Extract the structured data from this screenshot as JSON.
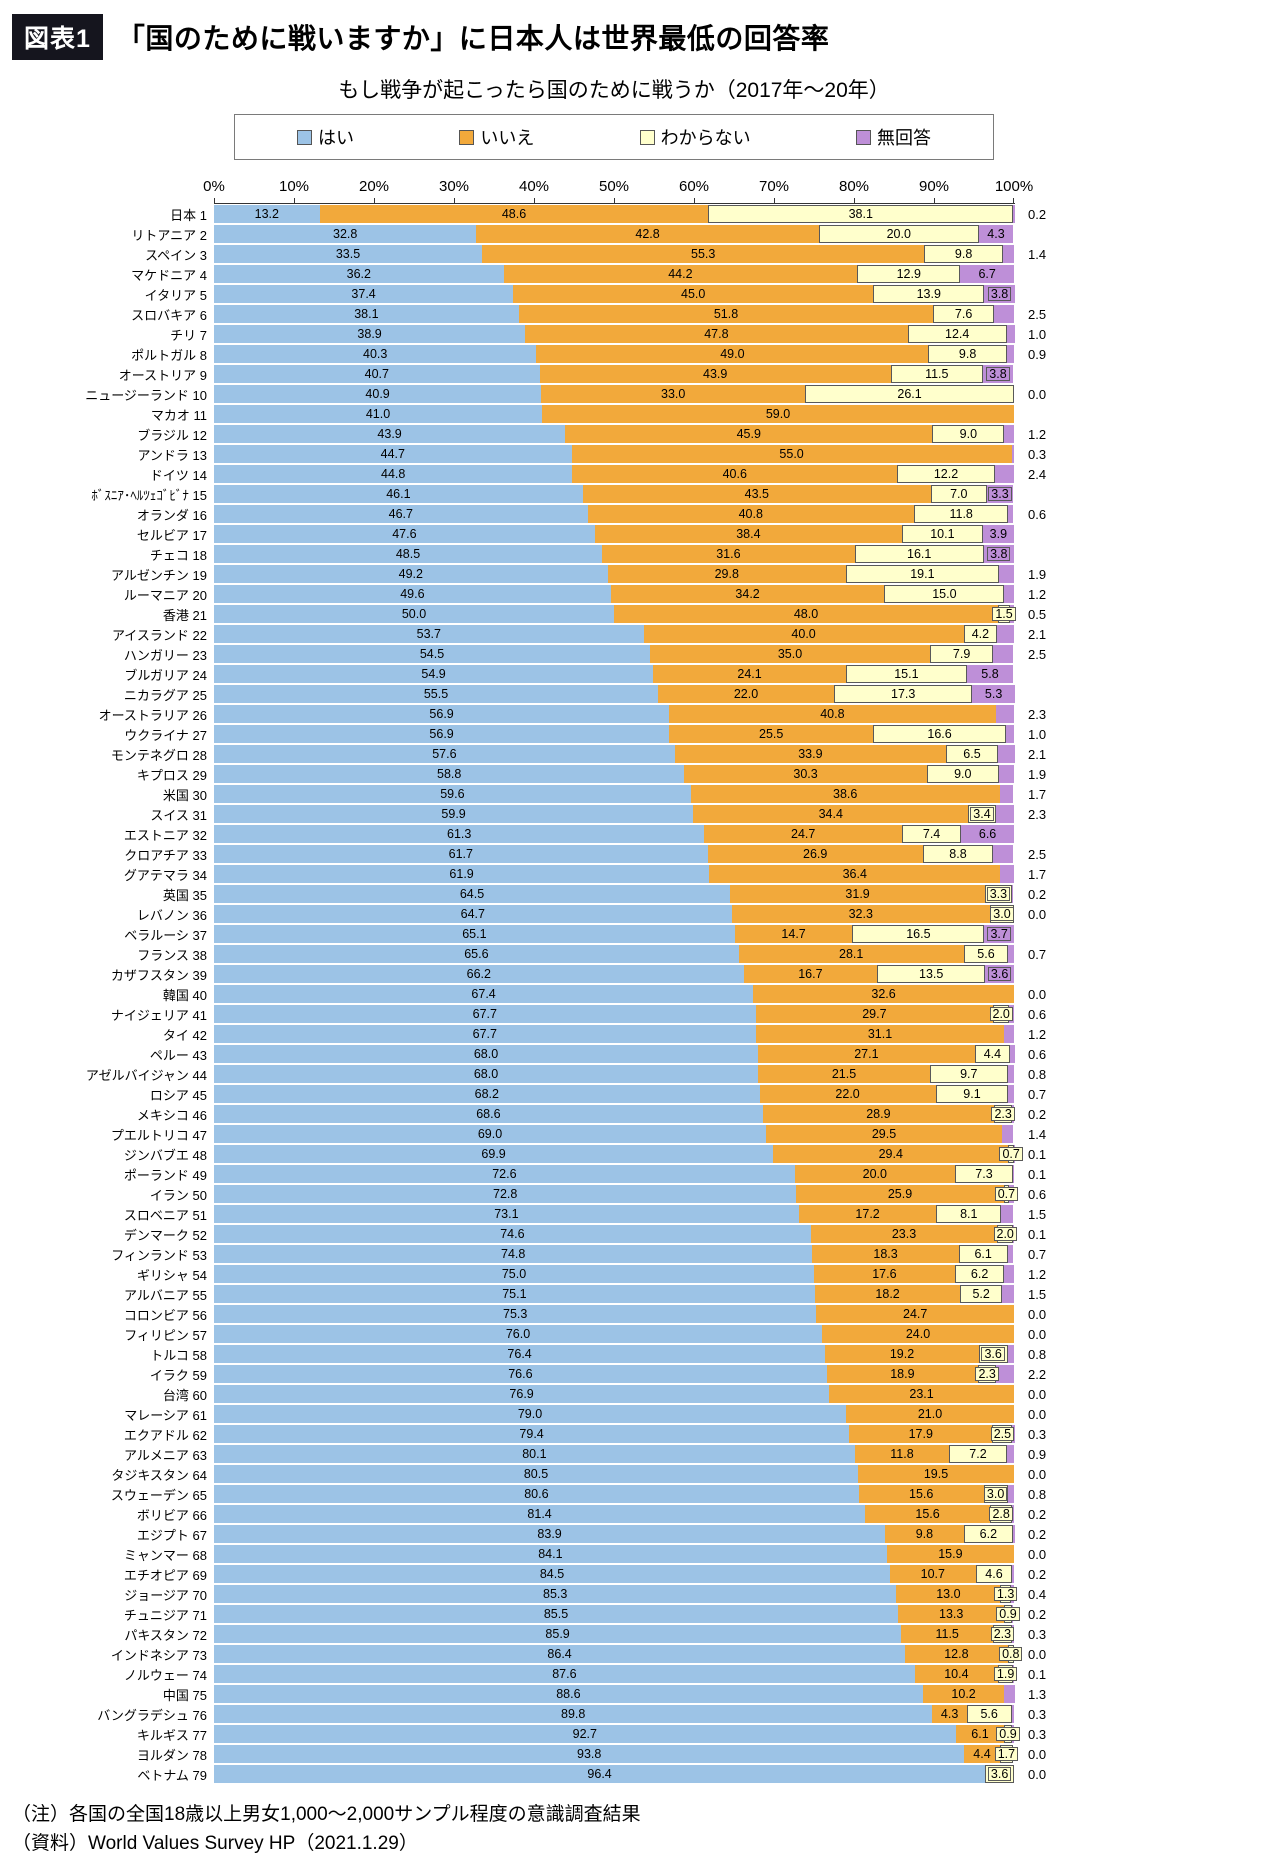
{
  "page": {
    "tag": "図表1",
    "title": "「国のために戦いますか」に日本人は世界最低の回答率",
    "subtitle": "もし戦争が起こったら国のために戦うか（2017年～20年）",
    "note": "（注）各国の全国18歳以上男女1,000～2,000サンプル程度の意識調査結果",
    "source": "（資料）World Values Survey HP（2021.1.29）"
  },
  "legend": [
    {
      "key": "yes",
      "label": "はい",
      "color": "#9CC3E6"
    },
    {
      "key": "no",
      "label": "いいえ",
      "color": "#F2A93B"
    },
    {
      "key": "dk",
      "label": "わからない",
      "color": "#FFFFCC"
    },
    {
      "key": "na",
      "label": "無回答",
      "color": "#BE8FD8"
    }
  ],
  "axis": {
    "ticks": [
      "0%",
      "10%",
      "20%",
      "30%",
      "40%",
      "50%",
      "60%",
      "70%",
      "80%",
      "90%",
      "100%"
    ],
    "tick_step": 10
  },
  "chart_data": {
    "type": "bar",
    "stacked": true,
    "orientation": "horizontal",
    "unit": "%",
    "x_range": [
      0,
      100
    ],
    "title": "もし戦争が起こったら国のために戦うか（2017年～20年）",
    "legend_position": "top",
    "series_names": [
      "はい",
      "いいえ",
      "わからない",
      "無回答"
    ],
    "rows": [
      {
        "rank": 1,
        "name": "日本",
        "yes": 13.2,
        "no": 48.6,
        "dk": 38.1,
        "na": 0.2,
        "right": "0.2",
        "na_inline": false
      },
      {
        "rank": 2,
        "name": "リトアニア",
        "yes": 32.8,
        "no": 42.8,
        "dk": 20.0,
        "na": 4.3,
        "right": "",
        "na_inline": true
      },
      {
        "rank": 3,
        "name": "スペイン",
        "yes": 33.5,
        "no": 55.3,
        "dk": 9.8,
        "na": 1.4,
        "right": "1.4",
        "na_inline": false
      },
      {
        "rank": 4,
        "name": "マケドニア",
        "yes": 36.2,
        "no": 44.2,
        "dk": 12.9,
        "na": 6.7,
        "right": "",
        "na_inline": true
      },
      {
        "rank": 5,
        "name": "イタリア",
        "yes": 37.4,
        "no": 45.0,
        "dk": 13.9,
        "na": 3.8,
        "right": "",
        "na_inline": true
      },
      {
        "rank": 6,
        "name": "スロバキア",
        "yes": 38.1,
        "no": 51.8,
        "dk": 7.6,
        "na": 2.5,
        "right": "2.5",
        "na_inline": false
      },
      {
        "rank": 7,
        "name": "チリ",
        "yes": 38.9,
        "no": 47.8,
        "dk": 12.4,
        "na": 1.0,
        "right": "1.0",
        "na_inline": false
      },
      {
        "rank": 8,
        "name": "ポルトガル",
        "yes": 40.3,
        "no": 49.0,
        "dk": 9.8,
        "na": 0.9,
        "right": "0.9",
        "na_inline": false
      },
      {
        "rank": 9,
        "name": "オーストリア",
        "yes": 40.7,
        "no": 43.9,
        "dk": 11.5,
        "na": 3.8,
        "right": "",
        "na_inline": true
      },
      {
        "rank": 10,
        "name": "ニュージーランド",
        "yes": 40.9,
        "no": 33.0,
        "dk": 26.1,
        "na": 0.0,
        "right": "0.0",
        "na_inline": false
      },
      {
        "rank": 11,
        "name": "マカオ",
        "yes": 41.0,
        "no": 59.0,
        "dk": 0,
        "na": 0,
        "right": "",
        "na_inline": false
      },
      {
        "rank": 12,
        "name": "ブラジル",
        "yes": 43.9,
        "no": 45.9,
        "dk": 9.0,
        "na": 1.2,
        "right": "1.2",
        "na_inline": false
      },
      {
        "rank": 13,
        "name": "アンドラ",
        "yes": 44.7,
        "no": 55.0,
        "dk": 0,
        "na": 0.3,
        "right": "0.3",
        "na_inline": false
      },
      {
        "rank": 14,
        "name": "ドイツ",
        "yes": 44.8,
        "no": 40.6,
        "dk": 12.2,
        "na": 2.4,
        "right": "2.4",
        "na_inline": false
      },
      {
        "rank": 15,
        "name": "ﾎﾞｽﾆｱ･ﾍﾙﾂｪｺﾞﾋﾞﾅ",
        "yes": 46.1,
        "no": 43.5,
        "dk": 7.0,
        "na": 3.3,
        "right": "",
        "na_inline": true
      },
      {
        "rank": 16,
        "name": "オランダ",
        "yes": 46.7,
        "no": 40.8,
        "dk": 11.8,
        "na": 0.6,
        "right": "0.6",
        "na_inline": false
      },
      {
        "rank": 17,
        "name": "セルビア",
        "yes": 47.6,
        "no": 38.4,
        "dk": 10.1,
        "na": 3.9,
        "right": "",
        "na_inline": true
      },
      {
        "rank": 18,
        "name": "チェコ",
        "yes": 48.5,
        "no": 31.6,
        "dk": 16.1,
        "na": 3.8,
        "right": "",
        "na_inline": true
      },
      {
        "rank": 19,
        "name": "アルゼンチン",
        "yes": 49.2,
        "no": 29.8,
        "dk": 19.1,
        "na": 1.9,
        "right": "1.9",
        "na_inline": false
      },
      {
        "rank": 20,
        "name": "ルーマニア",
        "yes": 49.6,
        "no": 34.2,
        "dk": 15.0,
        "na": 1.2,
        "right": "1.2",
        "na_inline": false
      },
      {
        "rank": 21,
        "name": "香港",
        "yes": 50.0,
        "no": 48.0,
        "dk": 1.5,
        "na": 0.5,
        "right": "0.5",
        "na_inline": false
      },
      {
        "rank": 22,
        "name": "アイスランド",
        "yes": 53.7,
        "no": 40.0,
        "dk": 4.2,
        "na": 2.1,
        "right": "2.1",
        "na_inline": false
      },
      {
        "rank": 23,
        "name": "ハンガリー",
        "yes": 54.5,
        "no": 35.0,
        "dk": 7.9,
        "na": 2.5,
        "right": "2.5",
        "na_inline": false
      },
      {
        "rank": 24,
        "name": "ブルガリア",
        "yes": 54.9,
        "no": 24.1,
        "dk": 15.1,
        "na": 5.8,
        "right": "",
        "na_inline": true
      },
      {
        "rank": 25,
        "name": "ニカラグア",
        "yes": 55.5,
        "no": 22.0,
        "dk": 17.3,
        "na": 5.3,
        "right": "",
        "na_inline": true
      },
      {
        "rank": 26,
        "name": "オーストラリア",
        "yes": 56.9,
        "no": 40.8,
        "dk": 0,
        "na": 2.3,
        "right": "2.3",
        "na_inline": false
      },
      {
        "rank": 27,
        "name": "ウクライナ",
        "yes": 56.9,
        "no": 25.5,
        "dk": 16.6,
        "na": 1.0,
        "right": "1.0",
        "na_inline": false
      },
      {
        "rank": 28,
        "name": "モンテネグロ",
        "yes": 57.6,
        "no": 33.9,
        "dk": 6.5,
        "na": 2.1,
        "right": "2.1",
        "na_inline": false
      },
      {
        "rank": 29,
        "name": "キプロス",
        "yes": 58.8,
        "no": 30.3,
        "dk": 9.0,
        "na": 1.9,
        "right": "1.9",
        "na_inline": false
      },
      {
        "rank": 30,
        "name": "米国",
        "yes": 59.6,
        "no": 38.6,
        "dk": 0,
        "na": 1.7,
        "right": "1.7",
        "na_inline": false
      },
      {
        "rank": 31,
        "name": "スイス",
        "yes": 59.9,
        "no": 34.4,
        "dk": 3.4,
        "na": 2.3,
        "right": "2.3",
        "na_inline": false
      },
      {
        "rank": 32,
        "name": "エストニア",
        "yes": 61.3,
        "no": 24.7,
        "dk": 7.4,
        "na": 6.6,
        "right": "",
        "na_inline": true
      },
      {
        "rank": 33,
        "name": "クロアチア",
        "yes": 61.7,
        "no": 26.9,
        "dk": 8.8,
        "na": 2.5,
        "right": "2.5",
        "na_inline": false
      },
      {
        "rank": 34,
        "name": "グアテマラ",
        "yes": 61.9,
        "no": 36.4,
        "dk": 0,
        "na": 1.7,
        "right": "1.7",
        "na_inline": false
      },
      {
        "rank": 35,
        "name": "英国",
        "yes": 64.5,
        "no": 31.9,
        "dk": 3.3,
        "na": 0.2,
        "right": "0.2",
        "na_inline": false
      },
      {
        "rank": 36,
        "name": "レバノン",
        "yes": 64.7,
        "no": 32.3,
        "dk": 3.0,
        "na": 0.0,
        "right": "0.0",
        "na_inline": false
      },
      {
        "rank": 37,
        "name": "ベラルーシ",
        "yes": 65.1,
        "no": 14.7,
        "dk": 16.5,
        "na": 3.7,
        "right": "",
        "na_inline": true
      },
      {
        "rank": 38,
        "name": "フランス",
        "yes": 65.6,
        "no": 28.1,
        "dk": 5.6,
        "na": 0.7,
        "right": "0.7",
        "na_inline": false
      },
      {
        "rank": 39,
        "name": "カザフスタン",
        "yes": 66.2,
        "no": 16.7,
        "dk": 13.5,
        "na": 3.6,
        "right": "",
        "na_inline": true
      },
      {
        "rank": 40,
        "name": "韓国",
        "yes": 67.4,
        "no": 32.6,
        "dk": 0,
        "na": 0.0,
        "right": "0.0",
        "na_inline": false
      },
      {
        "rank": 41,
        "name": "ナイジェリア",
        "yes": 67.7,
        "no": 29.7,
        "dk": 2.0,
        "na": 0.6,
        "right": "0.6",
        "na_inline": false
      },
      {
        "rank": 42,
        "name": "タイ",
        "yes": 67.7,
        "no": 31.1,
        "dk": 0,
        "na": 1.2,
        "right": "1.2",
        "na_inline": false
      },
      {
        "rank": 43,
        "name": "ペルー",
        "yes": 68.0,
        "no": 27.1,
        "dk": 4.4,
        "na": 0.6,
        "right": "0.6",
        "na_inline": false
      },
      {
        "rank": 44,
        "name": "アゼルバイジャン",
        "yes": 68.0,
        "no": 21.5,
        "dk": 9.7,
        "na": 0.8,
        "right": "0.8",
        "na_inline": false
      },
      {
        "rank": 45,
        "name": "ロシア",
        "yes": 68.2,
        "no": 22.0,
        "dk": 9.1,
        "na": 0.7,
        "right": "0.7",
        "na_inline": false
      },
      {
        "rank": 46,
        "name": "メキシコ",
        "yes": 68.6,
        "no": 28.9,
        "dk": 2.3,
        "na": 0.2,
        "right": "0.2",
        "na_inline": false
      },
      {
        "rank": 47,
        "name": "プエルトリコ",
        "yes": 69.0,
        "no": 29.5,
        "dk": 0,
        "na": 1.4,
        "right": "1.4",
        "na_inline": false
      },
      {
        "rank": 48,
        "name": "ジンバブエ",
        "yes": 69.9,
        "no": 29.4,
        "dk": 0.7,
        "na": 0.1,
        "right": "0.1",
        "na_inline": false
      },
      {
        "rank": 49,
        "name": "ポーランド",
        "yes": 72.6,
        "no": 20.0,
        "dk": 7.3,
        "na": 0.1,
        "right": "0.1",
        "na_inline": false
      },
      {
        "rank": 50,
        "name": "イラン",
        "yes": 72.8,
        "no": 25.9,
        "dk": 0.7,
        "na": 0.6,
        "right": "0.6",
        "na_inline": false
      },
      {
        "rank": 51,
        "name": "スロベニア",
        "yes": 73.1,
        "no": 17.2,
        "dk": 8.1,
        "na": 1.5,
        "right": "1.5",
        "na_inline": false
      },
      {
        "rank": 52,
        "name": "デンマーク",
        "yes": 74.6,
        "no": 23.3,
        "dk": 2.0,
        "na": 0.1,
        "right": "0.1",
        "na_inline": false
      },
      {
        "rank": 53,
        "name": "フィンランド",
        "yes": 74.8,
        "no": 18.3,
        "dk": 6.1,
        "na": 0.7,
        "right": "0.7",
        "na_inline": false
      },
      {
        "rank": 54,
        "name": "ギリシャ",
        "yes": 75.0,
        "no": 17.6,
        "dk": 6.2,
        "na": 1.2,
        "right": "1.2",
        "na_inline": false
      },
      {
        "rank": 55,
        "name": "アルバニア",
        "yes": 75.1,
        "no": 18.2,
        "dk": 5.2,
        "na": 1.5,
        "right": "1.5",
        "na_inline": false
      },
      {
        "rank": 56,
        "name": "コロンビア",
        "yes": 75.3,
        "no": 24.7,
        "dk": 0,
        "na": 0.0,
        "right": "0.0",
        "na_inline": false
      },
      {
        "rank": 57,
        "name": "フィリピン",
        "yes": 76.0,
        "no": 24.0,
        "dk": 0,
        "na": 0.0,
        "right": "0.0",
        "na_inline": false
      },
      {
        "rank": 58,
        "name": "トルコ",
        "yes": 76.4,
        "no": 19.2,
        "dk": 3.6,
        "na": 0.8,
        "right": "0.8",
        "na_inline": false
      },
      {
        "rank": 59,
        "name": "イラク",
        "yes": 76.6,
        "no": 18.9,
        "dk": 2.3,
        "na": 2.2,
        "right": "2.2",
        "na_inline": false
      },
      {
        "rank": 60,
        "name": "台湾",
        "yes": 76.9,
        "no": 23.1,
        "dk": 0,
        "na": 0.0,
        "right": "0.0",
        "na_inline": false
      },
      {
        "rank": 61,
        "name": "マレーシア",
        "yes": 79.0,
        "no": 21.0,
        "dk": 0,
        "na": 0.0,
        "right": "0.0",
        "na_inline": false
      },
      {
        "rank": 62,
        "name": "エクアドル",
        "yes": 79.4,
        "no": 17.9,
        "dk": 2.5,
        "na": 0.3,
        "right": "0.3",
        "na_inline": false
      },
      {
        "rank": 63,
        "name": "アルメニア",
        "yes": 80.1,
        "no": 11.8,
        "dk": 7.2,
        "na": 0.9,
        "right": "0.9",
        "na_inline": false
      },
      {
        "rank": 64,
        "name": "タジキスタン",
        "yes": 80.5,
        "no": 19.5,
        "dk": 0,
        "na": 0.0,
        "right": "0.0",
        "na_inline": false
      },
      {
        "rank": 65,
        "name": "スウェーデン",
        "yes": 80.6,
        "no": 15.6,
        "dk": 3.0,
        "na": 0.8,
        "right": "0.8",
        "na_inline": false
      },
      {
        "rank": 66,
        "name": "ボリビア",
        "yes": 81.4,
        "no": 15.6,
        "dk": 2.8,
        "na": 0.2,
        "right": "0.2",
        "na_inline": false
      },
      {
        "rank": 67,
        "name": "エジプト",
        "yes": 83.9,
        "no": 9.8,
        "dk": 6.2,
        "na": 0.2,
        "right": "0.2",
        "na_inline": false
      },
      {
        "rank": 68,
        "name": "ミャンマー",
        "yes": 84.1,
        "no": 15.9,
        "dk": 0,
        "na": 0.0,
        "right": "0.0",
        "na_inline": false
      },
      {
        "rank": 69,
        "name": "エチオピア",
        "yes": 84.5,
        "no": 10.7,
        "dk": 4.6,
        "na": 0.2,
        "right": "0.2",
        "na_inline": false
      },
      {
        "rank": 70,
        "name": "ジョージア",
        "yes": 85.3,
        "no": 13.0,
        "dk": 1.3,
        "na": 0.4,
        "right": "0.4",
        "na_inline": false
      },
      {
        "rank": 71,
        "name": "チュニジア",
        "yes": 85.5,
        "no": 13.3,
        "dk": 0.9,
        "na": 0.2,
        "right": "0.2",
        "na_inline": false
      },
      {
        "rank": 72,
        "name": "パキスタン",
        "yes": 85.9,
        "no": 11.5,
        "dk": 2.3,
        "na": 0.3,
        "right": "0.3",
        "na_inline": false
      },
      {
        "rank": 73,
        "name": "インドネシア",
        "yes": 86.4,
        "no": 12.8,
        "dk": 0.8,
        "na": 0.0,
        "right": "0.0",
        "na_inline": false
      },
      {
        "rank": 74,
        "name": "ノルウェー",
        "yes": 87.6,
        "no": 10.4,
        "dk": 1.9,
        "na": 0.1,
        "right": "0.1",
        "na_inline": false
      },
      {
        "rank": 75,
        "name": "中国",
        "yes": 88.6,
        "no": 10.2,
        "dk": 0,
        "na": 1.3,
        "right": "1.3",
        "na_inline": false
      },
      {
        "rank": 76,
        "name": "バングラデシュ",
        "yes": 89.8,
        "no": 4.3,
        "dk": 5.6,
        "na": 0.3,
        "right": "0.3",
        "na_inline": false
      },
      {
        "rank": 77,
        "name": "キルギス",
        "yes": 92.7,
        "no": 6.1,
        "dk": 0.9,
        "na": 0.3,
        "right": "0.3",
        "na_inline": false
      },
      {
        "rank": 78,
        "name": "ヨルダン",
        "yes": 93.8,
        "no": 4.4,
        "dk": 1.7,
        "na": 0.0,
        "right": "0.0",
        "na_inline": false
      },
      {
        "rank": 79,
        "name": "ベトナム",
        "yes": 96.4,
        "no": 0,
        "dk": 3.6,
        "na": 0.0,
        "right": "0.0",
        "na_inline": false
      }
    ]
  }
}
